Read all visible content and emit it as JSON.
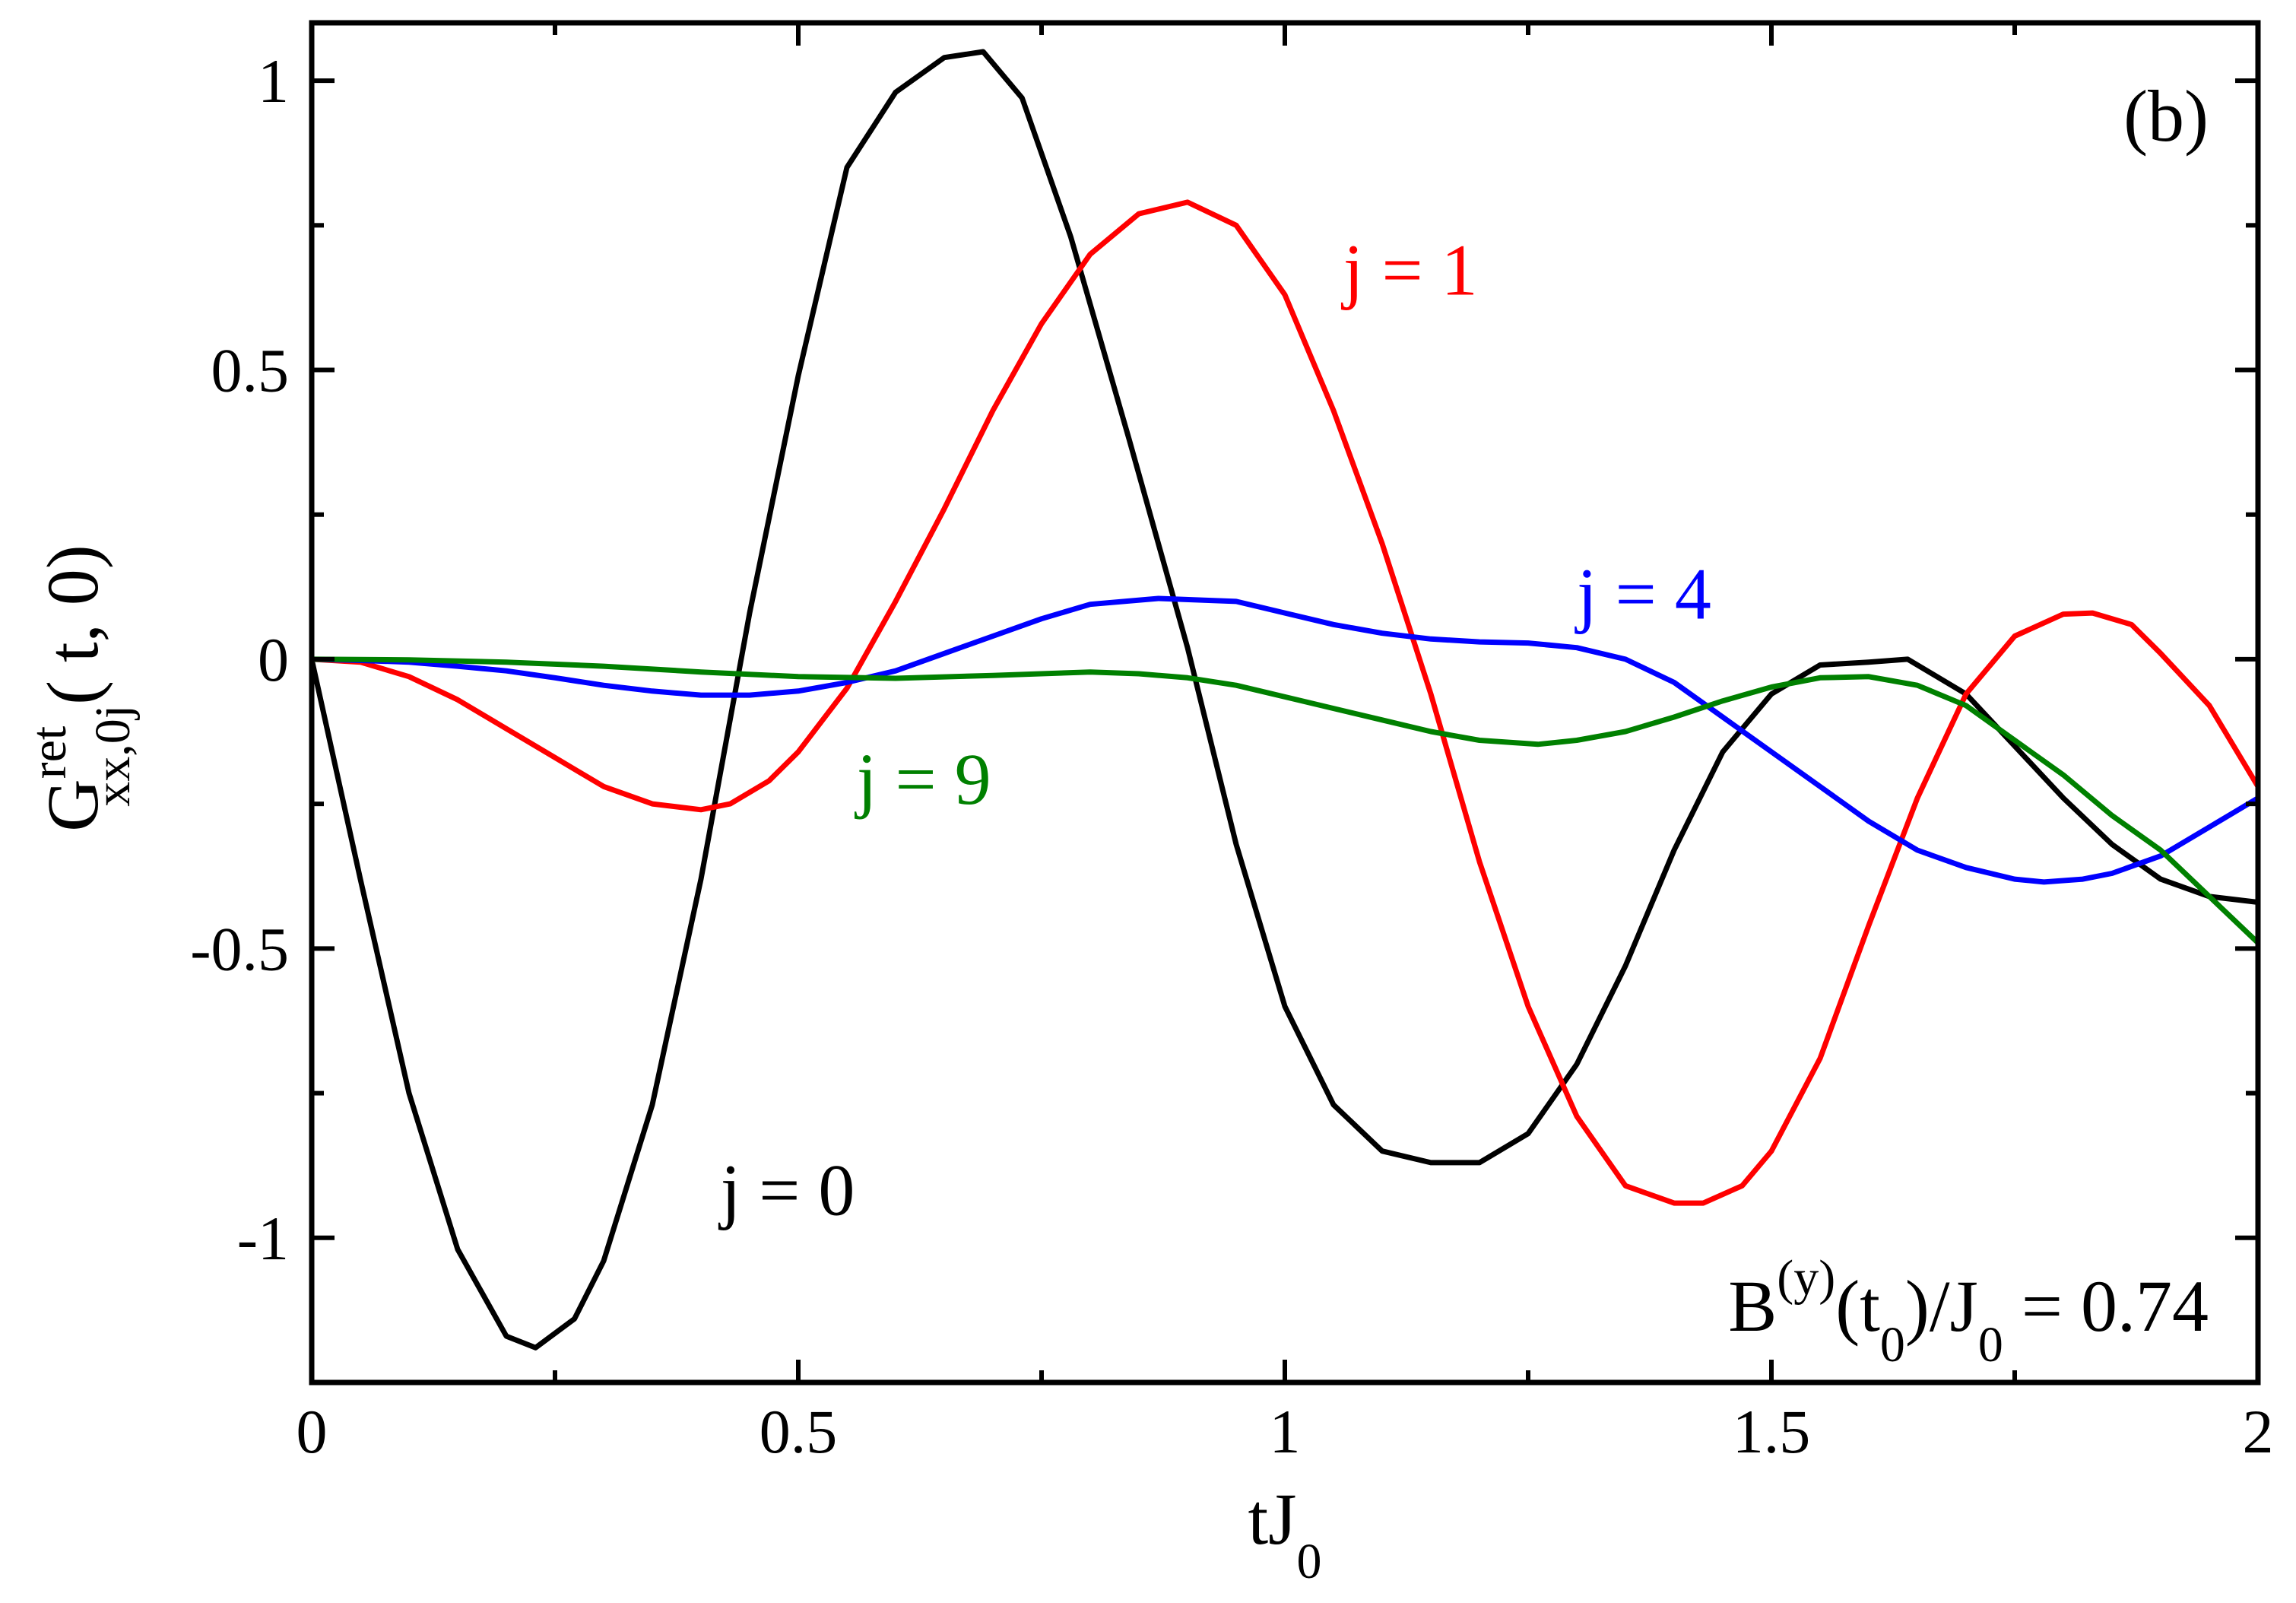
{
  "chart_data": {
    "type": "line",
    "panel_label": "(b)",
    "xlabel": "tJ",
    "xlabel_sub": "0",
    "ylabel": {
      "main": "G",
      "sup": "ret",
      "sub": "xx,0j",
      "tail": "( t, 0)"
    },
    "annotation": {
      "parts": [
        "B",
        "(y)",
        "(t",
        "0",
        ")/J",
        "0",
        " = 0.74"
      ]
    },
    "xlim": [
      0,
      2
    ],
    "ylim": [
      -1.25,
      1.1
    ],
    "xticks": [
      0,
      0.5,
      1,
      1.5,
      2
    ],
    "xtick_labels": [
      "0",
      "0.5",
      "1",
      "1.5",
      "2"
    ],
    "yticks": [
      -1,
      -0.5,
      0,
      0.5,
      1
    ],
    "ytick_labels": [
      "-1",
      "-0.5",
      "0",
      "0.5",
      "1"
    ],
    "x_minor_step": 0.25,
    "y_minor_step": 0.25,
    "grid": false,
    "series": [
      {
        "name": "j = 0",
        "color": "#000000",
        "x": [
          0,
          0.05,
          0.1,
          0.15,
          0.2,
          0.23,
          0.27,
          0.3,
          0.35,
          0.4,
          0.45,
          0.5,
          0.55,
          0.6,
          0.65,
          0.69,
          0.73,
          0.78,
          0.84,
          0.9,
          0.95,
          1.0,
          1.05,
          1.1,
          1.15,
          1.2,
          1.25,
          1.3,
          1.35,
          1.4,
          1.45,
          1.5,
          1.55,
          1.6,
          1.64,
          1.7,
          1.75,
          1.8,
          1.85,
          1.9,
          1.95,
          2.0
        ],
        "y": [
          0,
          -0.38,
          -0.75,
          -1.02,
          -1.17,
          -1.19,
          -1.14,
          -1.04,
          -0.77,
          -0.38,
          0.08,
          0.49,
          0.85,
          0.98,
          1.04,
          1.05,
          0.97,
          0.73,
          0.38,
          0.02,
          -0.32,
          -0.6,
          -0.77,
          -0.85,
          -0.87,
          -0.87,
          -0.82,
          -0.7,
          -0.53,
          -0.33,
          -0.16,
          -0.06,
          -0.01,
          -0.005,
          0.0,
          -0.06,
          -0.15,
          -0.24,
          -0.32,
          -0.38,
          -0.41,
          -0.42
        ]
      },
      {
        "name": "j = 1",
        "color": "#ff0000",
        "x": [
          0,
          0.05,
          0.1,
          0.15,
          0.2,
          0.25,
          0.3,
          0.35,
          0.4,
          0.43,
          0.47,
          0.5,
          0.55,
          0.6,
          0.65,
          0.7,
          0.75,
          0.8,
          0.85,
          0.9,
          0.95,
          1.0,
          1.05,
          1.1,
          1.15,
          1.2,
          1.25,
          1.3,
          1.35,
          1.4,
          1.43,
          1.47,
          1.5,
          1.55,
          1.6,
          1.65,
          1.7,
          1.75,
          1.8,
          1.83,
          1.87,
          1.9,
          1.95,
          2.0
        ],
        "y": [
          0,
          -0.005,
          -0.03,
          -0.07,
          -0.12,
          -0.17,
          -0.22,
          -0.25,
          -0.26,
          -0.25,
          -0.21,
          -0.16,
          -0.05,
          0.1,
          0.26,
          0.43,
          0.58,
          0.7,
          0.77,
          0.79,
          0.75,
          0.63,
          0.43,
          0.2,
          -0.06,
          -0.35,
          -0.6,
          -0.79,
          -0.91,
          -0.94,
          -0.94,
          -0.91,
          -0.85,
          -0.69,
          -0.46,
          -0.24,
          -0.06,
          0.04,
          0.078,
          0.08,
          0.06,
          0.01,
          -0.08,
          -0.22
        ]
      },
      {
        "name": "j = 4",
        "color": "#0000ff",
        "x": [
          0,
          0.05,
          0.1,
          0.15,
          0.2,
          0.25,
          0.3,
          0.35,
          0.4,
          0.45,
          0.5,
          0.55,
          0.6,
          0.65,
          0.7,
          0.75,
          0.8,
          0.87,
          0.95,
          1.0,
          1.05,
          1.1,
          1.15,
          1.2,
          1.25,
          1.3,
          1.35,
          1.4,
          1.45,
          1.5,
          1.55,
          1.6,
          1.65,
          1.7,
          1.75,
          1.78,
          1.82,
          1.85,
          1.9,
          1.95,
          2.0
        ],
        "y": [
          0,
          -0.002,
          -0.005,
          -0.012,
          -0.02,
          -0.032,
          -0.045,
          -0.055,
          -0.062,
          -0.062,
          -0.055,
          -0.04,
          -0.02,
          0.01,
          0.04,
          0.07,
          0.095,
          0.105,
          0.1,
          0.08,
          0.06,
          0.045,
          0.035,
          0.03,
          0.028,
          0.02,
          0.0,
          -0.04,
          -0.1,
          -0.16,
          -0.22,
          -0.28,
          -0.33,
          -0.36,
          -0.38,
          -0.385,
          -0.38,
          -0.37,
          -0.34,
          -0.29,
          -0.24
        ]
      },
      {
        "name": "j = 9",
        "color": "#008000",
        "x": [
          0,
          0.1,
          0.2,
          0.3,
          0.4,
          0.5,
          0.6,
          0.7,
          0.8,
          0.85,
          0.9,
          0.95,
          1.0,
          1.05,
          1.1,
          1.15,
          1.2,
          1.26,
          1.3,
          1.35,
          1.4,
          1.45,
          1.5,
          1.55,
          1.6,
          1.65,
          1.7,
          1.75,
          1.8,
          1.85,
          1.9,
          1.95,
          2.0
        ],
        "y": [
          0,
          -0.001,
          -0.005,
          -0.012,
          -0.022,
          -0.03,
          -0.033,
          -0.028,
          -0.022,
          -0.025,
          -0.032,
          -0.045,
          -0.065,
          -0.085,
          -0.105,
          -0.125,
          -0.14,
          -0.147,
          -0.14,
          -0.125,
          -0.1,
          -0.072,
          -0.048,
          -0.032,
          -0.03,
          -0.045,
          -0.08,
          -0.14,
          -0.2,
          -0.27,
          -0.33,
          -0.41,
          -0.49
        ]
      }
    ],
    "series_label_positions": [
      {
        "text": "j = 0",
        "x": 0.42,
        "y": -0.96
      },
      {
        "text": "j = 1",
        "x": 1.06,
        "y": 0.63
      },
      {
        "text": "j = 4",
        "x": 1.3,
        "y": 0.07
      },
      {
        "text": "j = 9",
        "x": 0.56,
        "y": -0.25
      }
    ]
  }
}
